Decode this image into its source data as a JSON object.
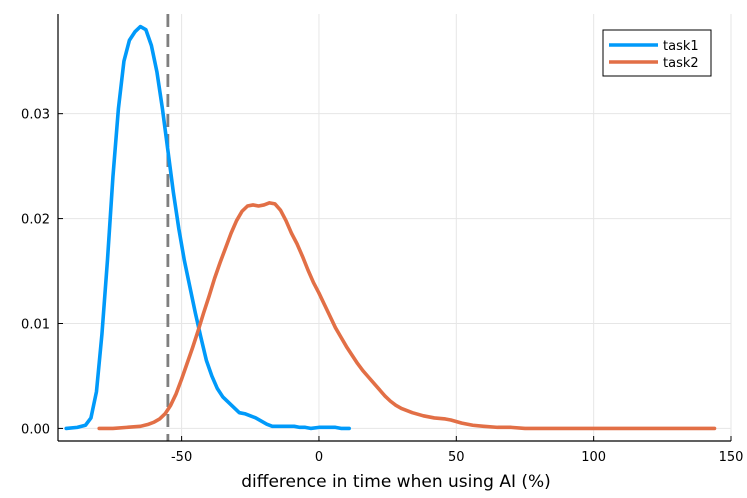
{
  "chart_data": {
    "type": "line",
    "title": "",
    "xlabel": "difference in time when using AI (%)",
    "ylabel": "",
    "xlim": [
      -95,
      150
    ],
    "ylim": [
      -0.0012,
      0.0395
    ],
    "xticks": [
      -50,
      0,
      50,
      100,
      150
    ],
    "xtick_labels": [
      "-50",
      "0",
      "50",
      "100",
      "150"
    ],
    "yticks": [
      0.0,
      0.01,
      0.02,
      0.03
    ],
    "ytick_labels": [
      "0.00",
      "0.01",
      "0.02",
      "0.03"
    ],
    "grid": true,
    "legend_position": "top-right",
    "reference_line": {
      "x": -55,
      "style": "dashed",
      "color": "#7f7f7f"
    },
    "series": [
      {
        "name": "task1",
        "color": "#009AFA",
        "points": [
          [
            -92,
            0.0
          ],
          [
            -88,
            0.0001
          ],
          [
            -85,
            0.0003
          ],
          [
            -83,
            0.001
          ],
          [
            -81,
            0.0035
          ],
          [
            -79,
            0.009
          ],
          [
            -77,
            0.016
          ],
          [
            -75,
            0.024
          ],
          [
            -73,
            0.0305
          ],
          [
            -71,
            0.035
          ],
          [
            -69,
            0.037
          ],
          [
            -67,
            0.0378
          ],
          [
            -65,
            0.0383
          ],
          [
            -63,
            0.038
          ],
          [
            -61,
            0.0365
          ],
          [
            -59,
            0.034
          ],
          [
            -57,
            0.0305
          ],
          [
            -55,
            0.0265
          ],
          [
            -53,
            0.0225
          ],
          [
            -51,
            0.019
          ],
          [
            -49,
            0.016
          ],
          [
            -47,
            0.0135
          ],
          [
            -45,
            0.011
          ],
          [
            -43,
            0.0087
          ],
          [
            -41,
            0.0065
          ],
          [
            -39,
            0.005
          ],
          [
            -37,
            0.0038
          ],
          [
            -35,
            0.003
          ],
          [
            -33,
            0.0025
          ],
          [
            -31,
            0.002
          ],
          [
            -29,
            0.0015
          ],
          [
            -27,
            0.0014
          ],
          [
            -25,
            0.0012
          ],
          [
            -23,
            0.001
          ],
          [
            -21,
            0.0007
          ],
          [
            -19,
            0.0004
          ],
          [
            -17,
            0.0002
          ],
          [
            -15,
            0.0002
          ],
          [
            -13,
            0.0002
          ],
          [
            -11,
            0.0002
          ],
          [
            -9,
            0.0002
          ],
          [
            -7,
            0.0001
          ],
          [
            -5,
            0.0001
          ],
          [
            -3,
            0.0
          ],
          [
            0,
            0.0001
          ],
          [
            3,
            0.0001
          ],
          [
            6,
            0.0001
          ],
          [
            8,
            0.0
          ],
          [
            11,
            0.0
          ]
        ]
      },
      {
        "name": "task2",
        "color": "#E26F46",
        "points": [
          [
            -80,
            0.0
          ],
          [
            -75,
            0.0
          ],
          [
            -70,
            0.0001
          ],
          [
            -65,
            0.0002
          ],
          [
            -62,
            0.0004
          ],
          [
            -60,
            0.0006
          ],
          [
            -58,
            0.0009
          ],
          [
            -56,
            0.0014
          ],
          [
            -54,
            0.0022
          ],
          [
            -52,
            0.0033
          ],
          [
            -50,
            0.0047
          ],
          [
            -48,
            0.0062
          ],
          [
            -46,
            0.0077
          ],
          [
            -44,
            0.0093
          ],
          [
            -42,
            0.011
          ],
          [
            -40,
            0.0126
          ],
          [
            -38,
            0.0143
          ],
          [
            -36,
            0.0158
          ],
          [
            -34,
            0.0172
          ],
          [
            -32,
            0.0186
          ],
          [
            -30,
            0.0198
          ],
          [
            -28,
            0.0207
          ],
          [
            -26,
            0.0212
          ],
          [
            -24,
            0.0213
          ],
          [
            -22,
            0.0212
          ],
          [
            -20,
            0.0213
          ],
          [
            -18,
            0.0215
          ],
          [
            -16,
            0.0214
          ],
          [
            -14,
            0.0208
          ],
          [
            -12,
            0.0198
          ],
          [
            -10,
            0.0186
          ],
          [
            -8,
            0.0176
          ],
          [
            -6,
            0.0164
          ],
          [
            -4,
            0.0151
          ],
          [
            -2,
            0.0139
          ],
          [
            0,
            0.0129
          ],
          [
            2,
            0.0118
          ],
          [
            4,
            0.0107
          ],
          [
            6,
            0.0096
          ],
          [
            8,
            0.0087
          ],
          [
            10,
            0.0078
          ],
          [
            12,
            0.007
          ],
          [
            14,
            0.0062
          ],
          [
            16,
            0.0055
          ],
          [
            18,
            0.0049
          ],
          [
            20,
            0.0043
          ],
          [
            22,
            0.0037
          ],
          [
            24,
            0.0031
          ],
          [
            26,
            0.0026
          ],
          [
            28,
            0.0022
          ],
          [
            30,
            0.0019
          ],
          [
            34,
            0.0015
          ],
          [
            38,
            0.0012
          ],
          [
            42,
            0.001
          ],
          [
            46,
            0.0009
          ],
          [
            48,
            0.0008
          ],
          [
            52,
            0.0005
          ],
          [
            56,
            0.0003
          ],
          [
            60,
            0.0002
          ],
          [
            65,
            0.0001
          ],
          [
            70,
            0.0001
          ],
          [
            75,
            0.0
          ],
          [
            85,
            0.0
          ],
          [
            95,
            0.0
          ],
          [
            105,
            0.0
          ],
          [
            115,
            0.0
          ],
          [
            125,
            0.0
          ],
          [
            135,
            0.0
          ],
          [
            144,
            0.0
          ]
        ]
      }
    ]
  }
}
